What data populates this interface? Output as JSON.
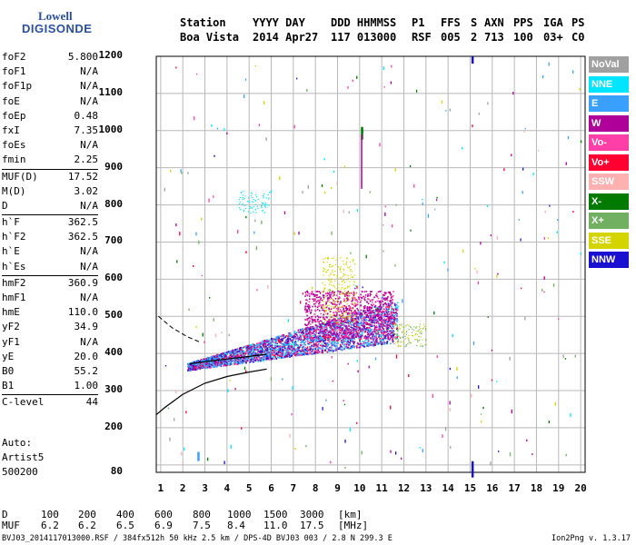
{
  "logo": {
    "line1": "Lowell",
    "line2": "DIGISONDE"
  },
  "header": {
    "row1": [
      "Station",
      "YYYY DAY",
      "DDD HHMMSS",
      "P1",
      "FFS",
      "S",
      "AXN",
      "PPS",
      "IGA",
      "PS"
    ],
    "row2": [
      "Boa Vista",
      "2014 Apr27",
      "117 013000",
      "RSF",
      "005",
      "2",
      "713",
      "100",
      "03+",
      "C0"
    ]
  },
  "params": {
    "g1": [
      {
        "k": "foF2",
        "v": "5.800"
      },
      {
        "k": "foF1",
        "v": "N/A"
      },
      {
        "k": "foF1p",
        "v": "N/A"
      },
      {
        "k": "foE",
        "v": "N/A"
      },
      {
        "k": "foEp",
        "v": "0.48"
      },
      {
        "k": "fxI",
        "v": "7.35"
      },
      {
        "k": "foEs",
        "v": "N/A"
      },
      {
        "k": "fmin",
        "v": "2.25"
      }
    ],
    "g2": [
      {
        "k": "MUF(D)",
        "v": "17.52"
      },
      {
        "k": "M(D)",
        "v": "3.02"
      },
      {
        "k": "D",
        "v": "N/A"
      }
    ],
    "g3": [
      {
        "k": "h`F",
        "v": "362.5"
      },
      {
        "k": "h`F2",
        "v": "362.5"
      },
      {
        "k": "h`E",
        "v": "N/A"
      },
      {
        "k": "h`Es",
        "v": "N/A"
      }
    ],
    "g4": [
      {
        "k": "hmF2",
        "v": "360.9"
      },
      {
        "k": "hmF1",
        "v": "N/A"
      },
      {
        "k": "hmE",
        "v": "110.0"
      },
      {
        "k": "yF2",
        "v": "34.9"
      },
      {
        "k": "yF1",
        "v": "N/A"
      },
      {
        "k": "yE",
        "v": "20.0"
      },
      {
        "k": "B0",
        "v": "55.2"
      },
      {
        "k": "B1",
        "v": "1.00"
      }
    ],
    "g5": [
      {
        "k": "C-level",
        "v": "44"
      }
    ]
  },
  "auto": {
    "l1": "Auto:",
    "l2": "Artist5",
    "l3": "500200"
  },
  "legend": [
    {
      "label": "NoVal",
      "color": "#a0a0a0"
    },
    {
      "label": "NNE",
      "color": "#00e5ff"
    },
    {
      "label": "E",
      "color": "#3aa0ff"
    },
    {
      "label": "W",
      "color": "#b0009a"
    },
    {
      "label": "Vo-",
      "color": "#ff3fa8"
    },
    {
      "label": "Vo+",
      "color": "#ff0030"
    },
    {
      "label": "SSW",
      "color": "#ffb0b0"
    },
    {
      "label": "X-",
      "color": "#007a00"
    },
    {
      "label": "X+",
      "color": "#70b060"
    },
    {
      "label": "SSE",
      "color": "#d4d400"
    },
    {
      "label": "NNW",
      "color": "#1a10d0"
    }
  ],
  "chart_data": {
    "type": "scatter",
    "x_ticks": [
      "1",
      "2",
      "3",
      "4",
      "5",
      "6",
      "7",
      "8",
      "9",
      "10",
      "11",
      "12",
      "13",
      "14",
      "15",
      "16",
      "17",
      "18",
      "19",
      "20"
    ],
    "y_ticks": [
      "80",
      "200",
      "300",
      "400",
      "500",
      "600",
      "700",
      "800",
      "900",
      "1000",
      "1100",
      "1200"
    ],
    "xlim": [
      0.8,
      20.2
    ],
    "ylim": [
      80,
      1200
    ],
    "grid": true,
    "profile_curve": {
      "x": [
        0.8,
        1.2,
        2.0,
        3.0,
        4.0,
        5.0,
        5.8
      ],
      "y": [
        235,
        255,
        290,
        320,
        338,
        350,
        358
      ]
    },
    "trace_curve": {
      "x": [
        2.3,
        3.0,
        4.0,
        5.0,
        5.8
      ],
      "y": [
        372,
        378,
        385,
        392,
        398
      ]
    },
    "dashed_curve": {
      "x": [
        0.9,
        1.5,
        2.2,
        2.8
      ],
      "y": [
        500,
        470,
        445,
        430
      ]
    }
  },
  "footer": {
    "row_d": [
      "D",
      "100",
      "200",
      "400",
      "600",
      "800",
      "1000",
      "1500",
      "3000",
      "[km]"
    ],
    "row_muf": [
      "MUF",
      "6.2",
      "6.2",
      "6.5",
      "6.9",
      "7.5",
      "8.4",
      "11.0",
      "17.5",
      "[MHz]"
    ],
    "file": "BVJ03_2014117013000.RSF / 384fx512h 50 kHz 2.5 km / DPS-4D BVJ03 003 / 2.8 N 299.3 E",
    "version": "Ion2Png v. 1.3.17"
  }
}
